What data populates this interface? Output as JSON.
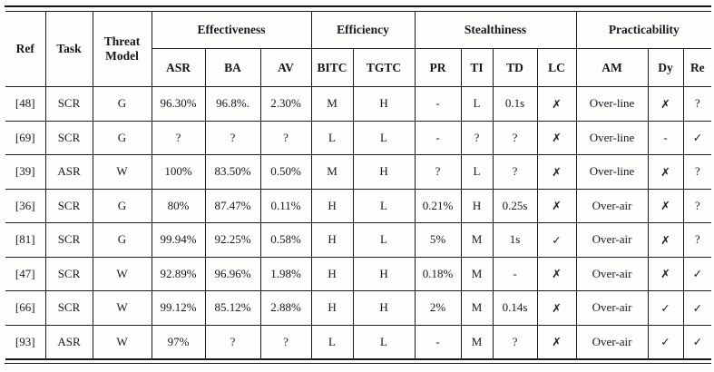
{
  "page": {
    "background": "#fffefd",
    "text_color": "#17171d",
    "rule_color": "#161616"
  },
  "table": {
    "corner_headers": [
      {
        "label": "Ref"
      },
      {
        "label": "Task"
      },
      {
        "label": "Threat Model"
      }
    ],
    "group_headers": [
      {
        "label": "Effectiveness",
        "span": 3
      },
      {
        "label": "Efficiency",
        "span": 2
      },
      {
        "label": "Stealthiness",
        "span": 4
      },
      {
        "label": "Practicability",
        "span": 3
      }
    ],
    "sub_headers": [
      "ASR",
      "BA",
      "AV",
      "BITC",
      "TGTC",
      "PR",
      "TI",
      "TD",
      "LC",
      "AM",
      "Dy",
      "Re"
    ],
    "marks": {
      "yes": "✓",
      "no": "✗",
      "unknown": "?",
      "none": "-"
    },
    "rows": [
      [
        "[48]",
        "SCR",
        "G",
        "96.30%",
        "96.8%.",
        "2.30%",
        "M",
        "H",
        "-",
        "L",
        "0.1s",
        "✗",
        "Over-line",
        "✗",
        "?"
      ],
      [
        "[69]",
        "SCR",
        "G",
        "?",
        "?",
        "?",
        "L",
        "L",
        "-",
        "?",
        "?",
        "✗",
        "Over-line",
        "-",
        "✓"
      ],
      [
        "[39]",
        "ASR",
        "W",
        "100%",
        "83.50%",
        "0.50%",
        "M",
        "H",
        "?",
        "L",
        "?",
        "✗",
        "Over-line",
        "✗",
        "?"
      ],
      [
        "[36]",
        "SCR",
        "G",
        "80%",
        "87.47%",
        "0.11%",
        "H",
        "L",
        "0.21%",
        "H",
        "0.25s",
        "✗",
        "Over-air",
        "✗",
        "?"
      ],
      [
        "[81]",
        "SCR",
        "G",
        "99.94%",
        "92.25%",
        "0.58%",
        "H",
        "L",
        "5%",
        "M",
        "1s",
        "✓",
        "Over-air",
        "✗",
        "?"
      ],
      [
        "[47]",
        "SCR",
        "W",
        "92.89%",
        "96.96%",
        "1.98%",
        "H",
        "H",
        "0.18%",
        "M",
        "-",
        "✗",
        "Over-air",
        "✗",
        "✓"
      ],
      [
        "[66]",
        "SCR",
        "W",
        "99.12%",
        "85.12%",
        "2.88%",
        "H",
        "H",
        "2%",
        "M",
        "0.14s",
        "✗",
        "Over-air",
        "✓",
        "✓"
      ],
      [
        "[93]",
        "ASR",
        "W",
        "97%",
        "?",
        "?",
        "L",
        "L",
        "-",
        "M",
        "?",
        "✗",
        "Over-air",
        "✓",
        "✓"
      ]
    ]
  }
}
